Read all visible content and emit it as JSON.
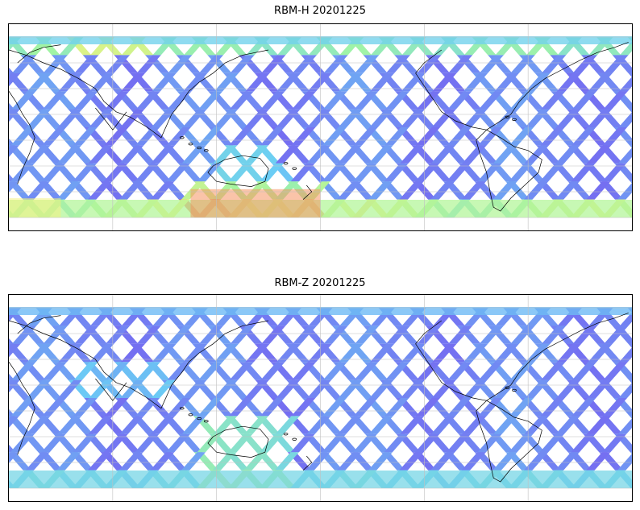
{
  "panels": [
    {
      "title": "RBM-H 20201225",
      "variant": "H"
    },
    {
      "title": "RBM-Z 20201225",
      "variant": "Z"
    }
  ],
  "colors": {
    "background": "#ffffff",
    "frame": "#000000",
    "gridline": "#c0c0c0",
    "coastline": "#000000",
    "colormap_low": "#6a5ef0",
    "colormap_mid1": "#5fc9f5",
    "colormap_mid2": "#9cf59a",
    "colormap_mid3": "#f5f070",
    "colormap_high": "#f55a4a"
  },
  "map": {
    "projection": "plate-carree",
    "lon_range": [
      -180,
      180
    ],
    "lat_range": [
      -70,
      90
    ],
    "grid": true,
    "swath_lat_range": [
      -60,
      80
    ]
  }
}
